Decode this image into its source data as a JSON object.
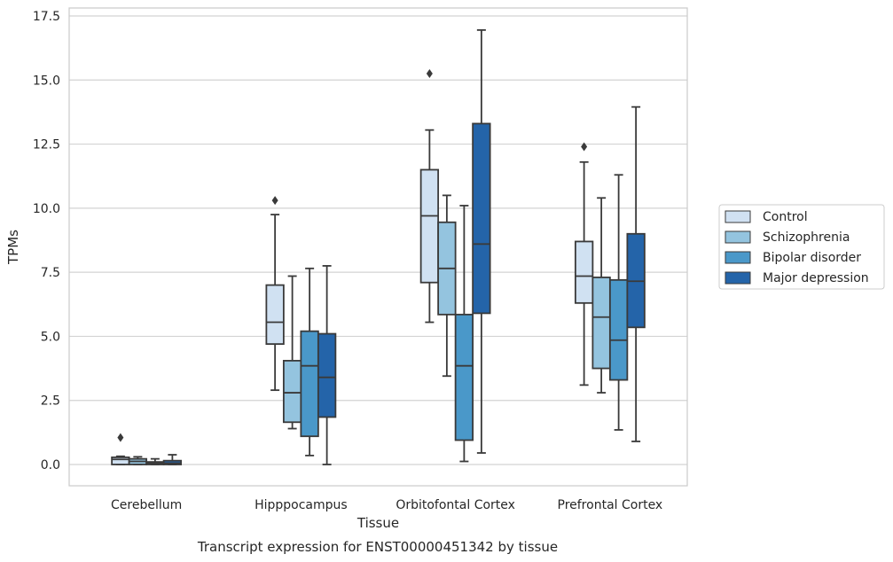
{
  "chart_data": {
    "type": "box",
    "xlabel": "Tissue",
    "ylabel": "TPMs",
    "ylim": [
      -0.8,
      17.6
    ],
    "yticks": [
      "0.0",
      "2.5",
      "5.0",
      "7.5",
      "10.0",
      "12.5",
      "15.0",
      "17.5"
    ],
    "ytick_values": [
      0,
      2.5,
      5,
      7.5,
      10,
      12.5,
      15,
      17.5
    ],
    "grid": "horizontal",
    "legend_position": "right",
    "categories": [
      "Cerebellum",
      "Hipppocampus",
      "Orbitofontal Cortex",
      "Prefrontal Cortex"
    ],
    "series": [
      {
        "name": "Control",
        "color": "#d0e1f2",
        "boxes": [
          {
            "whisker_low": 0.0,
            "q1": 0.0,
            "median": 0.2,
            "q3": 0.28,
            "whisker_high": 0.32,
            "outliers": [
              1.05
            ]
          },
          {
            "whisker_low": 2.9,
            "q1": 4.7,
            "median": 5.55,
            "q3": 7.0,
            "whisker_high": 9.75,
            "outliers": [
              10.3
            ]
          },
          {
            "whisker_low": 5.55,
            "q1": 7.1,
            "median": 9.7,
            "q3": 11.5,
            "whisker_high": 13.05,
            "outliers": [
              15.25
            ]
          },
          {
            "whisker_low": 3.1,
            "q1": 6.3,
            "median": 7.35,
            "q3": 8.7,
            "whisker_high": 11.8,
            "outliers": [
              12.4
            ]
          }
        ]
      },
      {
        "name": "Schizophrenia",
        "color": "#94c4df",
        "boxes": [
          {
            "whisker_low": 0.0,
            "q1": 0.0,
            "median": 0.12,
            "q3": 0.22,
            "whisker_high": 0.3,
            "outliers": []
          },
          {
            "whisker_low": 1.4,
            "q1": 1.65,
            "median": 2.8,
            "q3": 4.05,
            "whisker_high": 7.35,
            "outliers": []
          },
          {
            "whisker_low": 3.45,
            "q1": 5.85,
            "median": 7.65,
            "q3": 9.45,
            "whisker_high": 10.5,
            "outliers": []
          },
          {
            "whisker_low": 2.8,
            "q1": 3.75,
            "median": 5.75,
            "q3": 7.3,
            "whisker_high": 10.4,
            "outliers": []
          }
        ]
      },
      {
        "name": "Bipolar disorder",
        "color": "#4a98c9",
        "boxes": [
          {
            "whisker_low": 0.0,
            "q1": 0.0,
            "median": 0.05,
            "q3": 0.1,
            "whisker_high": 0.22,
            "outliers": []
          },
          {
            "whisker_low": 0.35,
            "q1": 1.1,
            "median": 3.85,
            "q3": 5.2,
            "whisker_high": 7.65,
            "outliers": []
          },
          {
            "whisker_low": 0.12,
            "q1": 0.95,
            "median": 3.85,
            "q3": 5.85,
            "whisker_high": 10.1,
            "outliers": []
          },
          {
            "whisker_low": 1.35,
            "q1": 3.3,
            "median": 4.85,
            "q3": 7.2,
            "whisker_high": 11.3,
            "outliers": []
          }
        ]
      },
      {
        "name": "Major depression",
        "color": "#2464a9",
        "boxes": [
          {
            "whisker_low": 0.0,
            "q1": 0.0,
            "median": 0.05,
            "q3": 0.15,
            "whisker_high": 0.38,
            "outliers": []
          },
          {
            "whisker_low": 0.0,
            "q1": 1.85,
            "median": 3.4,
            "q3": 5.1,
            "whisker_high": 7.75,
            "outliers": []
          },
          {
            "whisker_low": 0.45,
            "q1": 5.9,
            "median": 8.6,
            "q3": 13.3,
            "whisker_high": 16.95,
            "outliers": []
          },
          {
            "whisker_low": 0.9,
            "q1": 5.35,
            "median": 7.15,
            "q3": 9.0,
            "whisker_high": 13.95,
            "outliers": []
          }
        ]
      }
    ]
  },
  "caption": "Transcript expression for ENST00000451342 by tissue",
  "colors": {
    "grid": "#d3d3d3",
    "spine": "#cccccc",
    "line": "#3a3a3a"
  }
}
